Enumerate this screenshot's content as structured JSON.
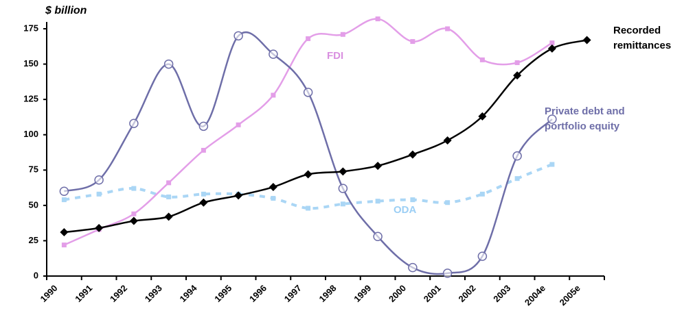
{
  "chart_data": {
    "type": "line",
    "y_label": "$ billion",
    "categories": [
      "1990",
      "1991",
      "1992",
      "1993",
      "1994",
      "1995",
      "1996",
      "1997",
      "1998",
      "1999",
      "2000",
      "2001",
      "2002",
      "2003",
      "2004e",
      "2005e"
    ],
    "series": [
      {
        "name": "Recorded remittances",
        "color": "#000000",
        "marker": "diamond",
        "values": [
          31,
          34,
          39,
          42,
          52,
          57,
          63,
          72,
          74,
          78,
          86,
          96,
          113,
          142,
          161,
          167
        ]
      },
      {
        "name": "FDI",
        "color": "#e39ee8",
        "marker": "square",
        "values": [
          22,
          33,
          44,
          66,
          89,
          107,
          128,
          168,
          171,
          182,
          166,
          175,
          153,
          151,
          165,
          null
        ]
      },
      {
        "name": "Private debt and portfolio equity",
        "color": "#6e6ea8",
        "marker": "circle",
        "values": [
          60,
          68,
          108,
          150,
          106,
          170,
          157,
          130,
          62,
          28,
          6,
          2,
          14,
          85,
          111,
          null
        ]
      },
      {
        "name": "ODA",
        "color": "#aad6f5",
        "marker": "square",
        "dashed": true,
        "values": [
          54,
          58,
          62,
          56,
          58,
          58,
          55,
          48,
          51,
          53,
          54,
          52,
          58,
          69,
          79,
          null
        ]
      }
    ],
    "ylim": [
      0,
      175
    ],
    "yticks": [
      0,
      25,
      50,
      75,
      100,
      125,
      150,
      175
    ],
    "grid": false
  }
}
